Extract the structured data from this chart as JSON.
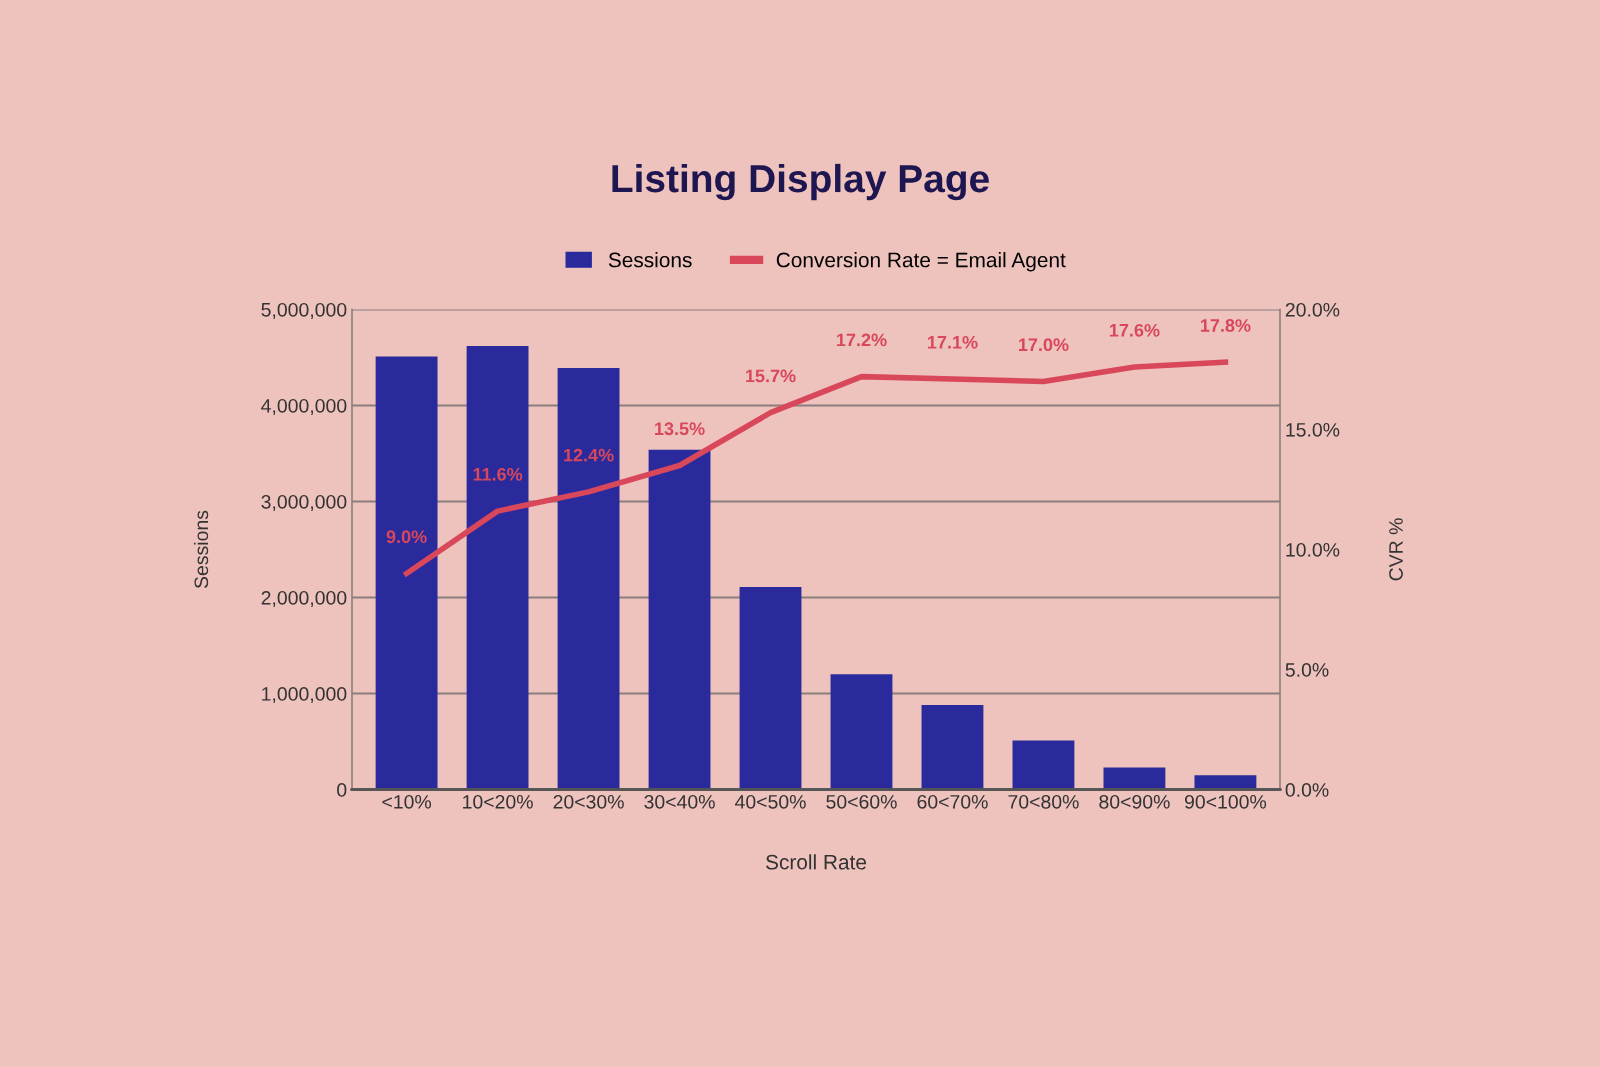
{
  "chart_data": {
    "type": "bar",
    "title": "Listing Display Page",
    "xlabel": "Scroll Rate",
    "ylabel": "Sessions",
    "y2label": "CVR %",
    "categories": [
      "<10%",
      "10<20%",
      "20<30%",
      "30<40%",
      "40<50%",
      "50<60%",
      "60<70%",
      "70<80%",
      "80<90%",
      "90<100%"
    ],
    "series": [
      {
        "name": "Sessions",
        "type": "bar",
        "color": "#2b2a9c",
        "values": [
          4510000,
          4620000,
          4390000,
          3540000,
          2110000,
          1200000,
          880000,
          510000,
          230000,
          150000
        ]
      },
      {
        "name": "Conversion Rate = Email Agent",
        "type": "line",
        "axis": "y2",
        "color": "#d9475a",
        "values": [
          9.0,
          11.6,
          12.4,
          13.5,
          15.7,
          17.2,
          17.1,
          17.0,
          17.6,
          17.8
        ],
        "value_labels": [
          "9.0%",
          "11.6%",
          "12.4%",
          "13.5%",
          "15.7%",
          "17.2%",
          "17.1%",
          "17.0%",
          "17.6%",
          "17.8%"
        ]
      }
    ],
    "ylim": [
      0,
      5000000
    ],
    "yticks": [
      {
        "value": 0,
        "label": "0"
      },
      {
        "value": 1000000,
        "label": "1,000,000"
      },
      {
        "value": 2000000,
        "label": "2,000,000"
      },
      {
        "value": 3000000,
        "label": "3,000,000"
      },
      {
        "value": 4000000,
        "label": "4,000,000"
      },
      {
        "value": 5000000,
        "label": "5,000,000"
      }
    ],
    "y2lim": [
      0,
      20
    ],
    "y2ticks": [
      {
        "value": 0,
        "label": "0.0%"
      },
      {
        "value": 5,
        "label": "5.0%"
      },
      {
        "value": 10,
        "label": "10.0%"
      },
      {
        "value": 15,
        "label": "15.0%"
      },
      {
        "value": 20,
        "label": "20.0%"
      }
    ],
    "grid": "y",
    "legend": "top",
    "marker": "none",
    "line_style": "solid"
  }
}
